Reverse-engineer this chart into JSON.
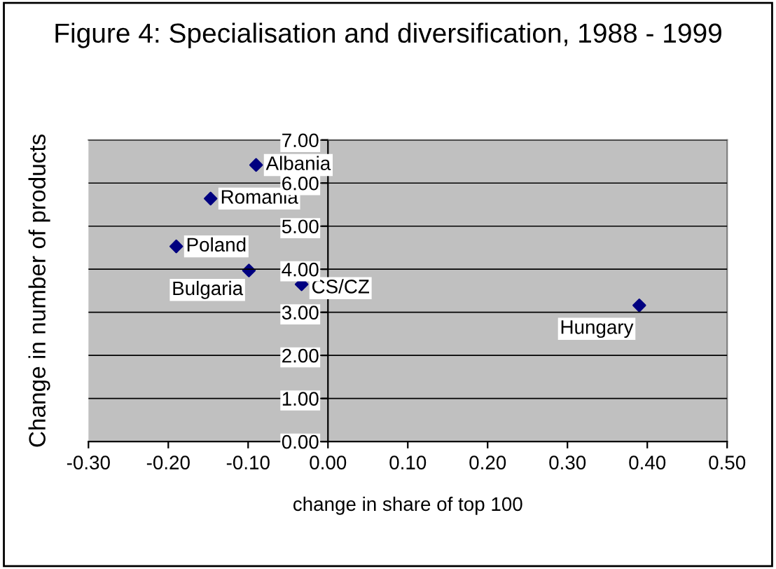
{
  "chart_data": {
    "type": "scatter",
    "title": "Figure 4: Specialisation and diversification, 1988 - 1999",
    "xlabel": "change in share of top 100",
    "ylabel": "Change in number of products",
    "x": [
      -0.09,
      -0.147,
      -0.19,
      -0.099,
      -0.033,
      0.39
    ],
    "values": [
      6.42,
      5.64,
      4.53,
      3.97,
      3.65,
      3.16
    ],
    "color": "#000080",
    "marker": "diamond",
    "grid": "y",
    "xlim": [
      -0.3,
      0.5
    ],
    "xticks": [
      {
        "value": -0.3,
        "label": "-0.30"
      },
      {
        "value": -0.2,
        "label": "-0.20"
      },
      {
        "value": -0.1,
        "label": "-0.10"
      },
      {
        "value": 0,
        "label": "0.00"
      },
      {
        "value": 0.1,
        "label": "0.10"
      },
      {
        "value": 0.2,
        "label": "0.20"
      },
      {
        "value": 0.3,
        "label": "0.30"
      },
      {
        "value": 0.4,
        "label": "0.40"
      },
      {
        "value": 0.5,
        "label": "0.50"
      }
    ],
    "ylim": [
      0,
      7
    ],
    "yticks": [
      {
        "value": 0,
        "label": "0.00"
      },
      {
        "value": 1,
        "label": "1.00"
      },
      {
        "value": 2,
        "label": "2.00"
      },
      {
        "value": 3,
        "label": "3.00"
      },
      {
        "value": 4,
        "label": "4.00"
      },
      {
        "value": 5,
        "label": "5.00"
      },
      {
        "value": 6,
        "label": "6.00"
      },
      {
        "value": 7,
        "label": "7.00"
      }
    ],
    "annotations": [
      {
        "text": "Albania",
        "x": -0.09,
        "y": 6.42
      },
      {
        "text": "Romania",
        "x": -0.147,
        "y": 5.64
      },
      {
        "text": "Poland",
        "x": -0.19,
        "y": 4.53
      },
      {
        "text": "Bulgaria",
        "x": -0.099,
        "y": 3.97
      },
      {
        "text": "CS/CZ",
        "x": -0.033,
        "y": 3.65
      },
      {
        "text": "Hungary",
        "x": 0.39,
        "y": 3.16
      }
    ]
  }
}
